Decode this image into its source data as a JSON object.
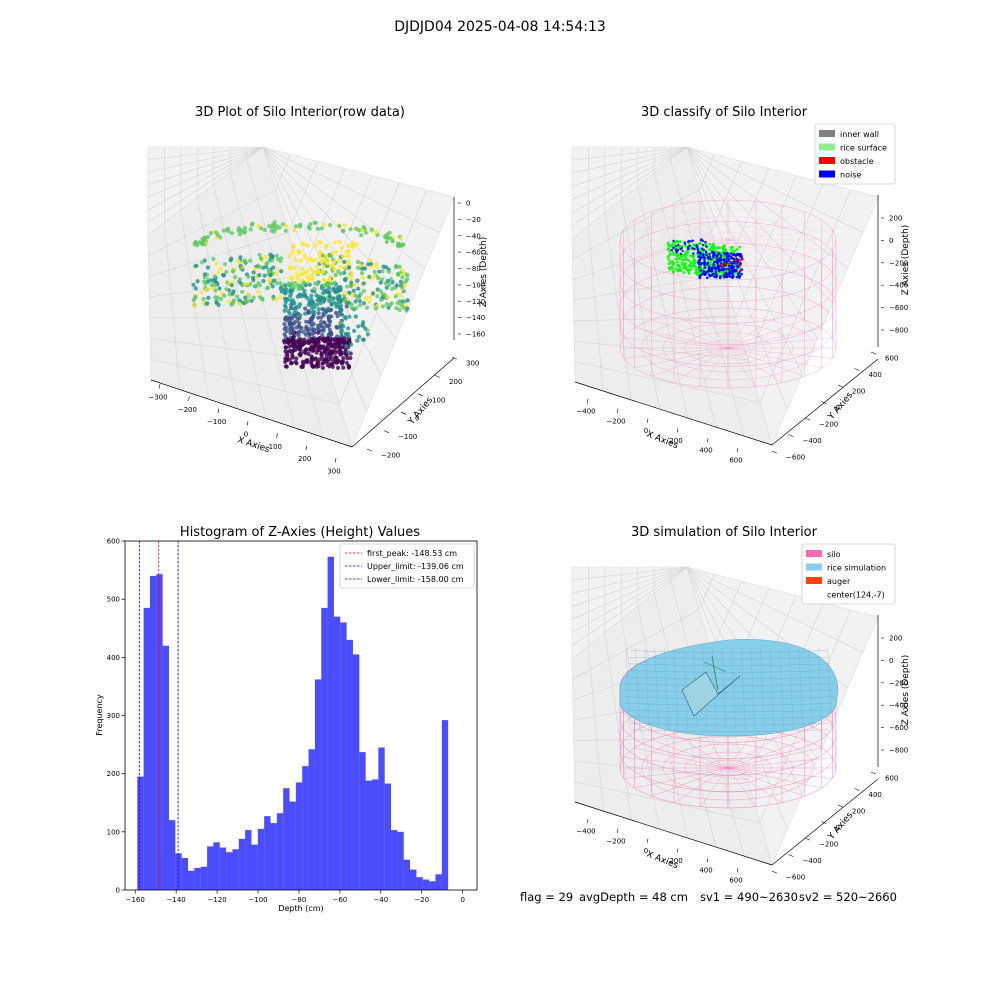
{
  "figure": {
    "suptitle": "DJDJD04 2025-04-08 14:54:13",
    "footer": {
      "flag": "flag = 29",
      "avg_depth": "avgDepth = 48 cm",
      "sv1": "sv1 = 490~2630",
      "sv2": "sv2 = 520~2660"
    }
  },
  "panels": {
    "raw": {
      "title": "3D Plot of Silo Interior(row data)",
      "xlabel": "X Axies",
      "ylabel": "Y Axies",
      "zlabel": "Z Axies (Depth)",
      "xticks": [
        "−300",
        "−200",
        "−100",
        "0",
        "100",
        "200",
        "300"
      ],
      "yticks": [
        "−200",
        "−100",
        "0",
        "100",
        "200",
        "300"
      ],
      "zticks": [
        "0",
        "−20",
        "−40",
        "−60",
        "−80",
        "−100",
        "−120",
        "−140",
        "−160"
      ],
      "colormap": [
        "#440154",
        "#3b528b",
        "#21918c",
        "#5ec962",
        "#fde725"
      ]
    },
    "classify": {
      "title": "3D classify of Silo Interior",
      "xlabel": "X Axies",
      "ylabel": "Y Axies",
      "zlabel": "Z Axies (Depth)",
      "xticks": [
        "−400",
        "−200",
        "0",
        "200",
        "400",
        "600"
      ],
      "yticks": [
        "−600",
        "−400",
        "−200",
        "0",
        "200",
        "400",
        "600"
      ],
      "zticks": [
        "200",
        "0",
        "−200",
        "−400",
        "−600",
        "−800"
      ],
      "legend": [
        {
          "label": "inner wall",
          "color": "#808080"
        },
        {
          "label": "rice surface",
          "color": "#90ee90"
        },
        {
          "label": "obstacle",
          "color": "#ff0000"
        },
        {
          "label": "noise",
          "color": "#0000ff"
        }
      ],
      "silo_color": "#ff69b4"
    },
    "simulation": {
      "title": "3D simulation of Silo Interior",
      "xlabel": "X Axies",
      "ylabel": "Y Axies",
      "zlabel": "Z Axies (Depth)",
      "xticks": [
        "−400",
        "−200",
        "0",
        "200",
        "400",
        "600"
      ],
      "yticks": [
        "−600",
        "−400",
        "−200",
        "0",
        "200",
        "400",
        "600"
      ],
      "zticks": [
        "200",
        "0",
        "−200",
        "−400",
        "−600",
        "−800"
      ],
      "legend": [
        {
          "label": "silo",
          "color": "#ff69b4"
        },
        {
          "label": "rice simulation",
          "color": "#87ceeb"
        },
        {
          "label": "auger",
          "color": "#ff4500"
        },
        {
          "label": "center(124,-7)",
          "color": "#ffffff"
        }
      ]
    }
  },
  "chart_data": [
    {
      "type": "histogram",
      "title": "Histogram of Z-Axies (Height) Values",
      "xlabel": "Depth (cm)",
      "ylabel": "Frequency",
      "xlim": [
        -165,
        7
      ],
      "ylim": [
        0,
        600
      ],
      "xticks": [
        -160,
        -140,
        -120,
        -100,
        -80,
        -60,
        -40,
        -20,
        0
      ],
      "xtick_labels": [
        "−160",
        "−140",
        "−120",
        "−100",
        "−80",
        "−60",
        "−40",
        "−20",
        "0"
      ],
      "yticks": [
        0,
        100,
        200,
        300,
        400,
        500,
        600
      ],
      "bar_color": "#0000ff",
      "bin_start": -159.0,
      "bin_width": 3.1,
      "counts": [
        195,
        485,
        540,
        543,
        420,
        120,
        63,
        55,
        33,
        38,
        40,
        75,
        82,
        73,
        65,
        70,
        88,
        103,
        78,
        105,
        127,
        115,
        132,
        175,
        152,
        185,
        213,
        242,
        362,
        485,
        573,
        470,
        460,
        430,
        405,
        237,
        188,
        190,
        245,
        183,
        103,
        100,
        52,
        35,
        22,
        18,
        15,
        27,
        292
      ],
      "vlines": [
        {
          "label": "first_peak: -148.53 cm",
          "x": -148.53,
          "color": "#ff0000"
        },
        {
          "label": "Upper_limit: -139.06 cm",
          "x": -139.06,
          "color": "#0000ff"
        },
        {
          "label": "Lower_limit: -158.00 cm",
          "x": -158.0,
          "color": "#0000ff"
        }
      ],
      "legend": "top-right",
      "grid": false
    }
  ]
}
